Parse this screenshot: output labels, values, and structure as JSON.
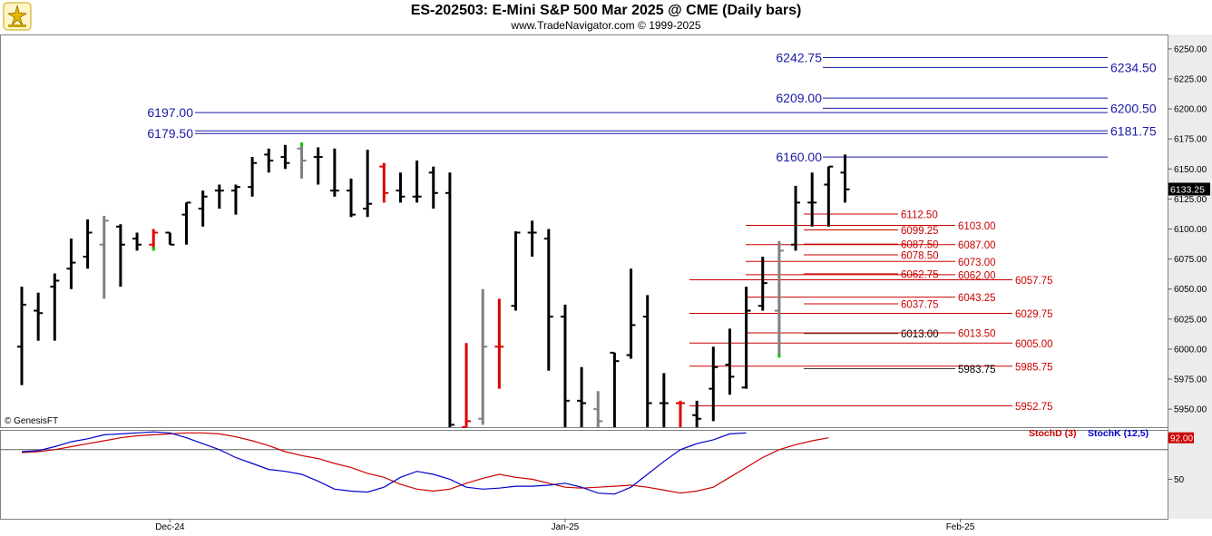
{
  "header": {
    "title": "ES-202503:  E-Mini S&P 500 Mar 2025 @ CME  (Daily bars)",
    "subtitle": "www.TradeNavigator.com © 1999-2025"
  },
  "copyright_label": "© GenesisFT",
  "chart_data": [
    {
      "type": "ohlc",
      "ylim": [
        5935,
        6262
      ],
      "y_ticks": [
        "6250.00",
        "6225.00",
        "6200.00",
        "6175.00",
        "6150.00",
        "6125.00",
        "6100.00",
        "6075.00",
        "6050.00",
        "6025.00",
        "6000.00",
        "5975.00",
        "5950.00"
      ],
      "x_ticks": [
        {
          "label": "Dec-24",
          "bar": 9
        },
        {
          "label": "Jan-25",
          "bar": 33
        },
        {
          "label": "Feb-25",
          "bar": 57
        }
      ],
      "last_price": "6133.25",
      "colors": {
        "normal": "#000000",
        "inside": "#808080",
        "down_wide": "#dd0000",
        "highlight": "#00cc00",
        "blue_level": "#1a1aa6",
        "red_level": "#cc0000"
      },
      "bars": [
        {
          "o": 6002,
          "h": 6052,
          "l": 5970,
          "c": 6037,
          "k": "b"
        },
        {
          "o": 6032,
          "h": 6047,
          "l": 6007,
          "c": 6030,
          "k": "b"
        },
        {
          "o": 6052,
          "h": 6063,
          "l": 6007,
          "c": 6057,
          "k": "b"
        },
        {
          "o": 6067,
          "h": 6092,
          "l": 6050,
          "c": 6072,
          "k": "b"
        },
        {
          "o": 6077,
          "h": 6108,
          "l": 6067,
          "c": 6097,
          "k": "b"
        },
        {
          "o": 6087,
          "h": 6111,
          "l": 6042,
          "c": 6107,
          "k": "g"
        },
        {
          "o": 6102,
          "h": 6104,
          "l": 6052,
          "c": 6087,
          "k": "b"
        },
        {
          "o": 6092,
          "h": 6097,
          "l": 6082,
          "c": 6087,
          "k": "b"
        },
        {
          "o": 6087,
          "h": 6100,
          "l": 6082,
          "c": 6097,
          "k": "r"
        },
        {
          "o": 6097,
          "h": 6097,
          "l": 6087,
          "c": 6087,
          "k": "b"
        },
        {
          "o": 6112,
          "h": 6122,
          "l": 6087,
          "c": 6122,
          "k": "b"
        },
        {
          "o": 6117,
          "h": 6132,
          "l": 6102,
          "c": 6127,
          "k": "b"
        },
        {
          "o": 6132,
          "h": 6137,
          "l": 6117,
          "c": 6132,
          "k": "b"
        },
        {
          "o": 6132,
          "h": 6137,
          "l": 6112,
          "c": 6135,
          "k": "b"
        },
        {
          "o": 6135,
          "h": 6160,
          "l": 6127,
          "c": 6155,
          "k": "b"
        },
        {
          "o": 6162,
          "h": 6167,
          "l": 6147,
          "c": 6157,
          "k": "b"
        },
        {
          "o": 6160,
          "h": 6170,
          "l": 6150,
          "c": 6155,
          "k": "b"
        },
        {
          "o": 6167,
          "h": 6172,
          "l": 6142,
          "c": 6157,
          "k": "g"
        },
        {
          "o": 6160,
          "h": 6168,
          "l": 6137,
          "c": 6160,
          "k": "b"
        },
        {
          "o": 6132,
          "h": 6167,
          "l": 6127,
          "c": 6132,
          "k": "b"
        },
        {
          "o": 6132,
          "h": 6142,
          "l": 6110,
          "c": 6112,
          "k": "b"
        },
        {
          "o": 6117,
          "h": 6166,
          "l": 6110,
          "c": 6121,
          "k": "b"
        },
        {
          "o": 6152,
          "h": 6155,
          "l": 6122,
          "c": 6130,
          "k": "r"
        },
        {
          "o": 6132,
          "h": 6147,
          "l": 6122,
          "c": 6127,
          "k": "b"
        },
        {
          "o": 6127,
          "h": 6157,
          "l": 6122,
          "c": 6127,
          "k": "b"
        },
        {
          "o": 6147,
          "h": 6152,
          "l": 6117,
          "c": 6130,
          "k": "b"
        },
        {
          "o": 6130,
          "h": 6147,
          "l": 5935,
          "c": 5937,
          "k": "b"
        },
        {
          "o": 5935,
          "h": 6005,
          "l": 5935,
          "c": 5940,
          "k": "r"
        },
        {
          "o": 5942,
          "h": 6050,
          "l": 5937,
          "c": 6002,
          "k": "g"
        },
        {
          "o": 6002,
          "h": 6042,
          "l": 5967,
          "c": 6002,
          "k": "r"
        },
        {
          "o": 6036,
          "h": 6098,
          "l": 6032,
          "c": 6097,
          "k": "b"
        },
        {
          "o": 6097,
          "h": 6107,
          "l": 6077,
          "c": 6097,
          "k": "b"
        },
        {
          "o": 6092,
          "h": 6100,
          "l": 5982,
          "c": 6027,
          "k": "b"
        },
        {
          "o": 6027,
          "h": 6037,
          "l": 5935,
          "c": 5957,
          "k": "b"
        },
        {
          "o": 5957,
          "h": 5985,
          "l": 5935,
          "c": 5955,
          "k": "b"
        },
        {
          "o": 5950,
          "h": 5965,
          "l": 5935,
          "c": 5940,
          "k": "g"
        },
        {
          "o": 5997,
          "h": 5997,
          "l": 5935,
          "c": 5990,
          "k": "b"
        },
        {
          "o": 5995,
          "h": 6067,
          "l": 5992,
          "c": 6020,
          "k": "b"
        },
        {
          "o": 6027,
          "h": 6045,
          "l": 5935,
          "c": 5955,
          "k": "b"
        },
        {
          "o": 5955,
          "h": 5980,
          "l": 5935,
          "c": 5955,
          "k": "b"
        },
        {
          "o": 5955,
          "h": 5957,
          "l": 5935,
          "c": 5955,
          "k": "r"
        },
        {
          "o": 5945,
          "h": 5957,
          "l": 5935,
          "c": 5942,
          "k": "b"
        },
        {
          "o": 5967,
          "h": 6002,
          "l": 5940,
          "c": 5985,
          "k": "b"
        },
        {
          "o": 5987,
          "h": 6017,
          "l": 5962,
          "c": 5977,
          "k": "b"
        },
        {
          "o": 5968,
          "h": 6052,
          "l": 5967,
          "c": 6032,
          "k": "b"
        },
        {
          "o": 6036,
          "h": 6077,
          "l": 6032,
          "c": 6055,
          "k": "b"
        },
        {
          "o": 6032,
          "h": 6090,
          "l": 5993,
          "c": 6082,
          "k": "g"
        },
        {
          "o": 6087,
          "h": 6136,
          "l": 6082,
          "c": 6122,
          "k": "b"
        },
        {
          "o": 6122,
          "h": 6147,
          "l": 6102,
          "c": 6122,
          "k": "b"
        },
        {
          "o": 6137,
          "h": 6152,
          "l": 6102,
          "c": 6152,
          "k": "b"
        },
        {
          "o": 6147,
          "h": 6162,
          "l": 6122,
          "c": 6133,
          "k": "b"
        }
      ],
      "blue_levels": [
        {
          "price": 6242.75,
          "label": "6242.75",
          "side": "left"
        },
        {
          "price": 6234.5,
          "label": "6234.50",
          "side": "right"
        },
        {
          "price": 6209.0,
          "label": "6209.00",
          "side": "left"
        },
        {
          "price": 6200.5,
          "label": "6200.50",
          "side": "right"
        },
        {
          "price": 6197.0,
          "label": "6197.00",
          "side": "left"
        },
        {
          "price": 6179.5,
          "label": "6179.50",
          "side": "left"
        },
        {
          "price": 6181.75,
          "label": "6181.75",
          "side": "right"
        },
        {
          "price": 6160.0,
          "label": "6160.00",
          "side": "left"
        }
      ],
      "red_levels": [
        {
          "price": 6112.5,
          "label": "6112.50"
        },
        {
          "price": 6103.0,
          "label": "6103.00"
        },
        {
          "price": 6099.25,
          "label": "6099.25"
        },
        {
          "price": 6087.5,
          "label": "6087.50"
        },
        {
          "price": 6087.0,
          "label": "6087.00"
        },
        {
          "price": 6078.5,
          "label": "6078.50"
        },
        {
          "price": 6073.0,
          "label": "6073.00"
        },
        {
          "price": 6062.75,
          "label": "6062.75"
        },
        {
          "price": 6062.0,
          "label": "6062.00"
        },
        {
          "price": 6057.75,
          "label": "6057.75"
        },
        {
          "price": 6043.25,
          "label": "6043.25"
        },
        {
          "price": 6037.75,
          "label": "6037.75"
        },
        {
          "price": 6029.75,
          "label": "6029.75"
        },
        {
          "price": 6013.0,
          "label": "6013.00"
        },
        {
          "price": 6013.5,
          "label": "6013.50"
        },
        {
          "price": 6005.0,
          "label": "6005.00"
        },
        {
          "price": 5985.75,
          "label": "5985.75"
        },
        {
          "price": 5983.75,
          "label": "5983.75"
        },
        {
          "price": 5952.75,
          "label": "5952.75"
        }
      ]
    },
    {
      "type": "line",
      "ylim": [
        10,
        100
      ],
      "y_ticks": [
        "50"
      ],
      "reference_line": 80,
      "last_value": "92.00",
      "series": [
        {
          "name": "StochD (3)",
          "color": "#cc0000",
          "values": [
            77,
            78,
            80,
            83,
            86,
            89,
            92,
            94,
            95,
            96,
            97,
            97,
            96,
            93,
            89,
            84,
            78,
            74,
            71,
            66,
            62,
            56,
            52,
            45,
            40,
            38,
            40,
            46,
            51,
            55,
            52,
            50,
            46,
            42,
            41,
            42,
            43,
            44,
            42,
            39,
            36,
            38,
            42,
            52,
            62,
            72,
            80,
            85,
            89,
            92
          ]
        },
        {
          "name": "StochK (12,5)",
          "color": "#0000cc",
          "values": [
            78,
            79,
            83,
            88,
            91,
            95,
            96,
            97,
            98,
            97,
            92,
            86,
            80,
            72,
            66,
            60,
            58,
            55,
            48,
            40,
            38,
            37,
            42,
            52,
            58,
            55,
            50,
            42,
            40,
            41,
            43,
            43,
            44,
            46,
            42,
            36,
            35,
            42,
            55,
            68,
            80,
            86,
            90,
            96,
            97
          ]
        }
      ]
    }
  ]
}
